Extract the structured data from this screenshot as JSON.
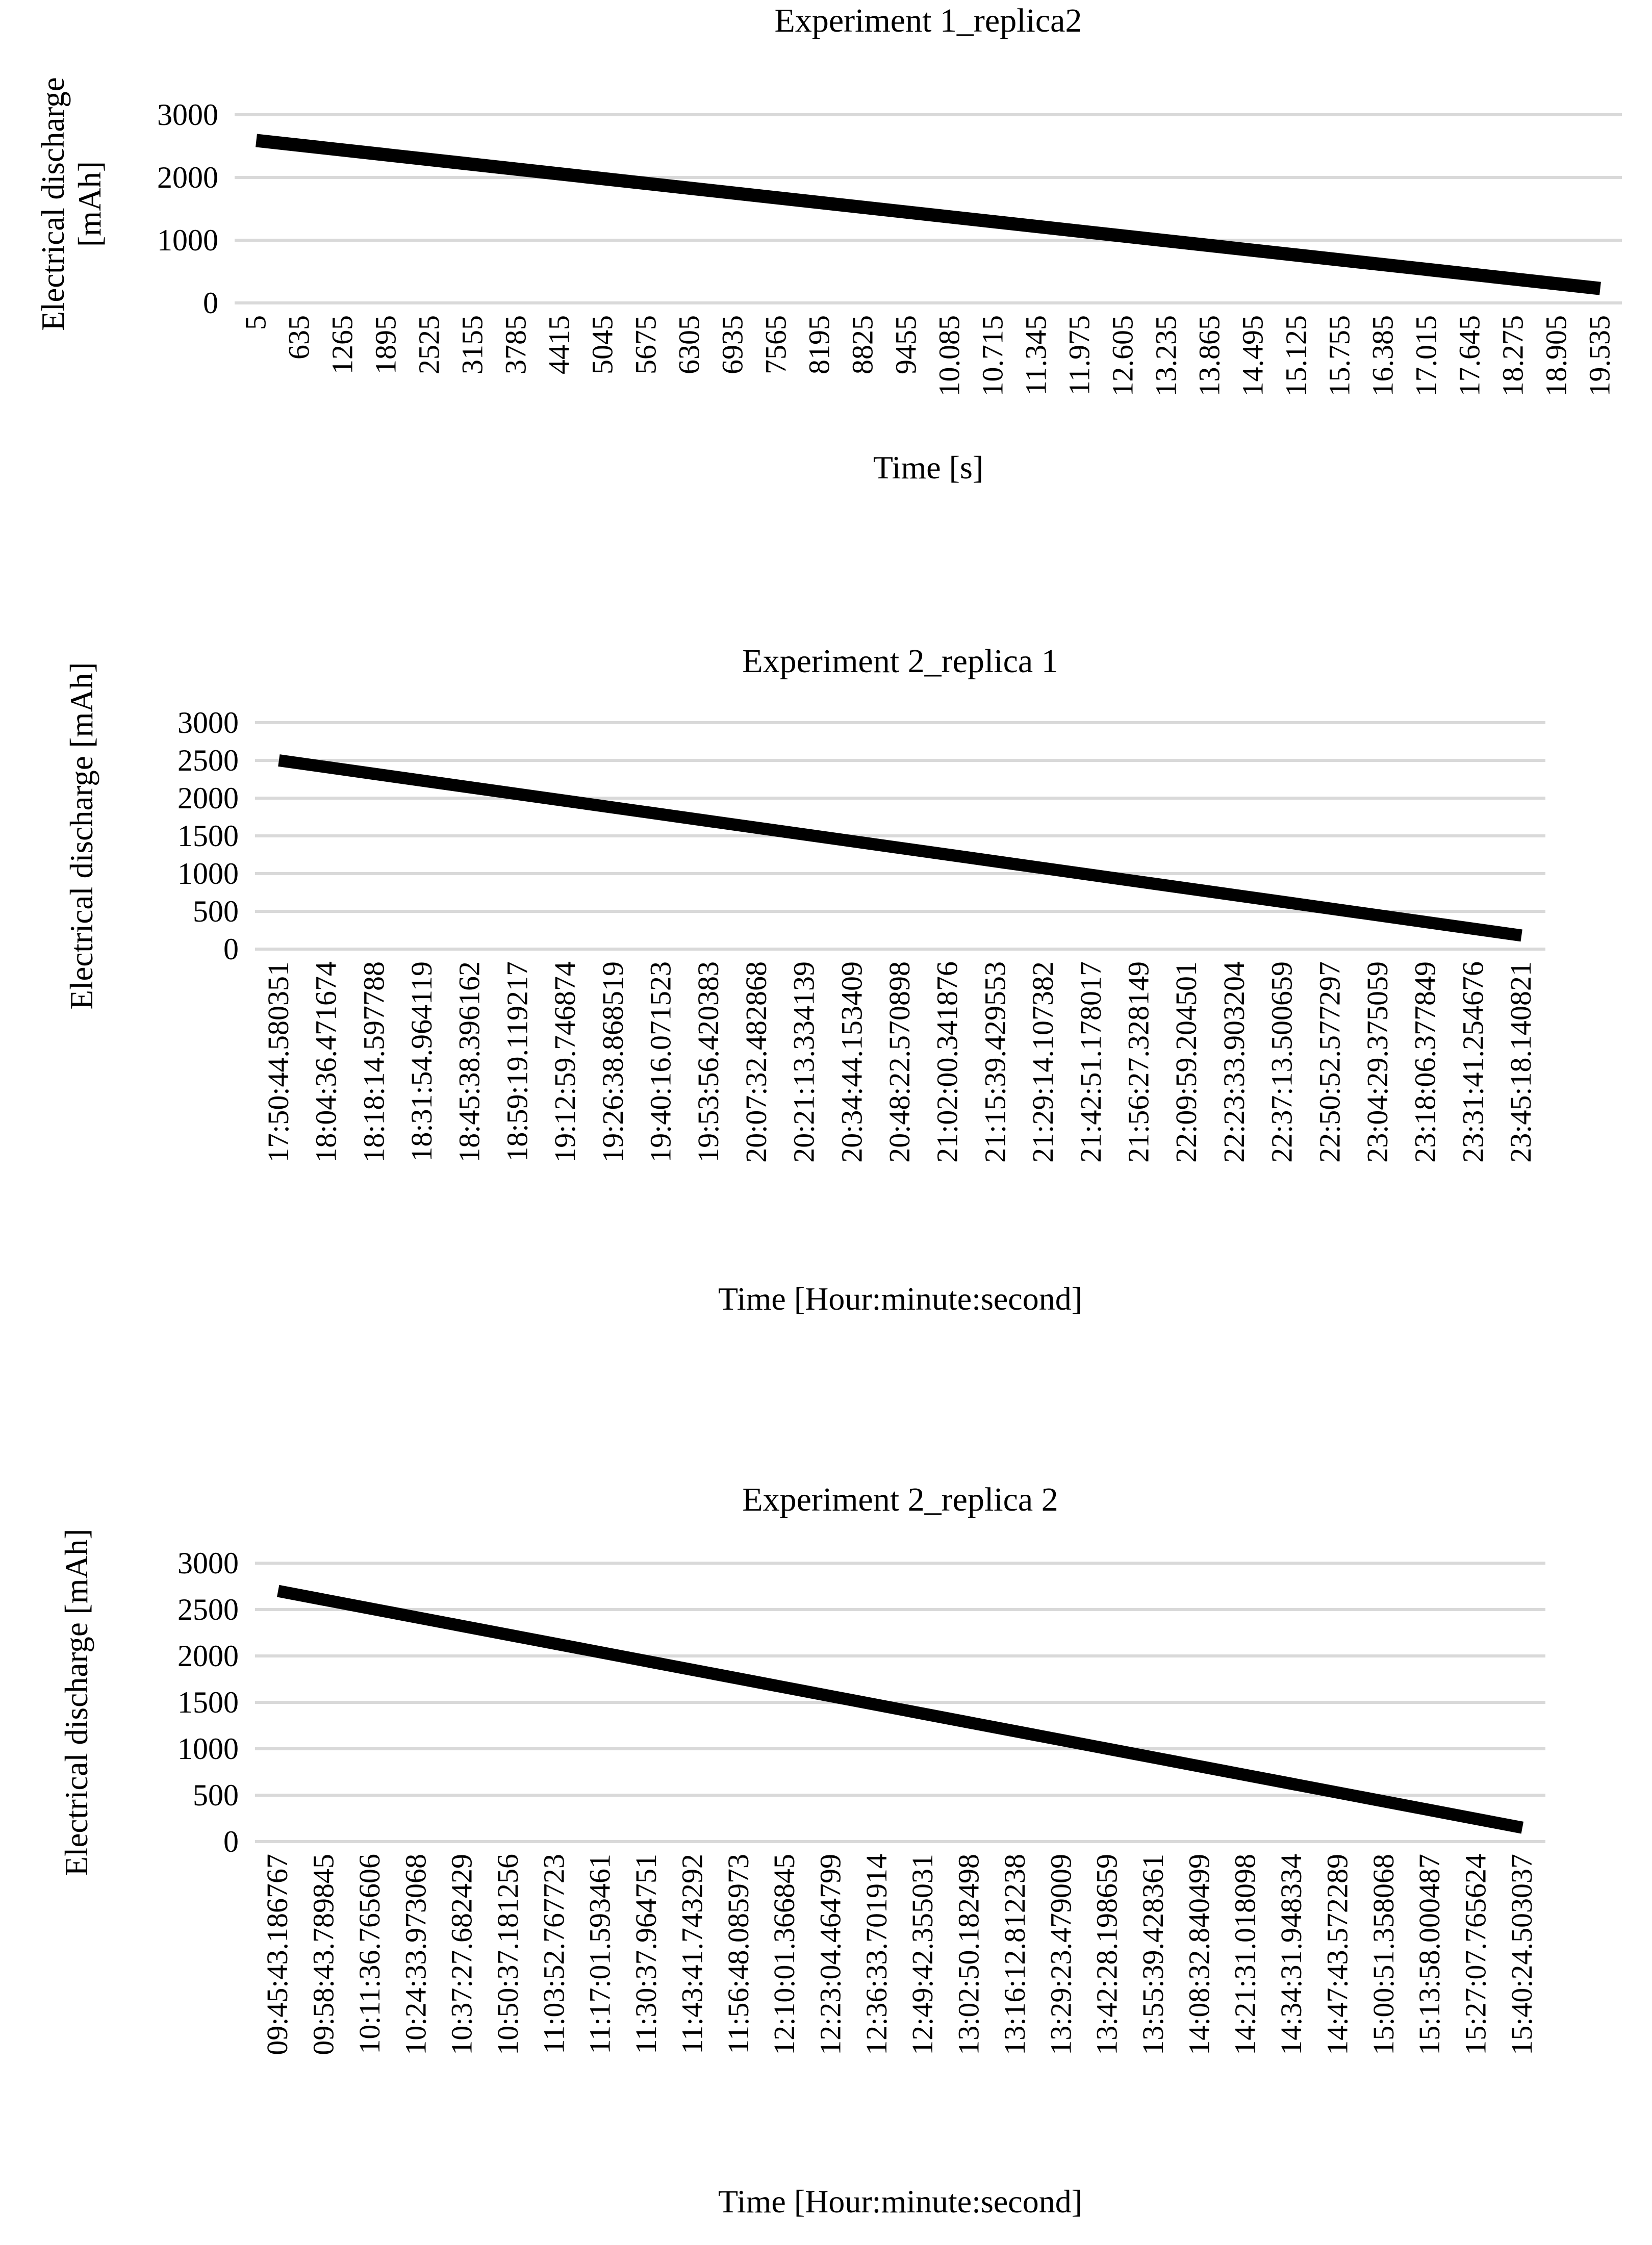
{
  "figure": {
    "background_color": "#ffffff",
    "text_color": "#000000",
    "grid_color": "#d9d9d9",
    "line_color": "#000000"
  },
  "chart_data": [
    {
      "type": "line",
      "title": "Experiment 1_replica2",
      "xlabel": "Time [s]",
      "ylabel": "Electrical discharge\n[mAh]",
      "ylim": [
        0,
        3000
      ],
      "yticks": [
        3000,
        2000,
        1000,
        0
      ],
      "grid": true,
      "legend": "none",
      "categories": [
        "5",
        "635",
        "1265",
        "1895",
        "2525",
        "3155",
        "3785",
        "4415",
        "5045",
        "5675",
        "6305",
        "6935",
        "7565",
        "8195",
        "8825",
        "9455",
        "10.085",
        "10.715",
        "11.345",
        "11.975",
        "12.605",
        "13.235",
        "13.865",
        "14.495",
        "15.125",
        "15.755",
        "16.385",
        "17.015",
        "17.645",
        "18.275",
        "18.905",
        "19.535"
      ],
      "series": [
        {
          "name": "Electrical discharge",
          "shape": "linear-decline",
          "start_value_mAh": 2590,
          "end_value_mAh": 230
        }
      ]
    },
    {
      "type": "line",
      "title": "Experiment 2_replica 1",
      "xlabel": "Time [Hour:minute:second]",
      "ylabel": "Electrical discharge [mAh]",
      "ylim": [
        0,
        3000
      ],
      "yticks": [
        3000,
        2500,
        2000,
        1500,
        1000,
        500,
        0
      ],
      "grid": true,
      "legend": "none",
      "categories": [
        "17:50:44.580351",
        "18:04:36.471674",
        "18:18:14.597788",
        "18:31:54.964119",
        "18:45:38.396162",
        "18:59:19.119217",
        "19:12:59.746874",
        "19:26:38.868519",
        "19:40:16.071523",
        "19:53:56.420383",
        "20:07:32.482868",
        "20:21:13.334139",
        "20:34:44.153409",
        "20:48:22.570898",
        "21:02:00.341876",
        "21:15:39.429553",
        "21:29:14.107382",
        "21:42:51.178017",
        "21:56:27.328149",
        "22:09:59.204501",
        "22:23:33.903204",
        "22:37:13.500659",
        "22:50:52.577297",
        "23:04:29.375059",
        "23:18:06.377849",
        "23:31:41.254676",
        "23:45:18.140821"
      ],
      "series": [
        {
          "name": "Electrical discharge",
          "shape": "linear-decline",
          "start_value_mAh": 2500,
          "end_value_mAh": 180
        }
      ]
    },
    {
      "type": "line",
      "title": "Experiment 2_replica 2",
      "xlabel": "Time [Hour:minute:second]",
      "ylabel": "Electrical discharge [mAh]",
      "ylim": [
        0,
        3000
      ],
      "yticks": [
        3000,
        2500,
        2000,
        1500,
        1000,
        500,
        0
      ],
      "grid": true,
      "legend": "none",
      "categories": [
        "09:45:43.186767",
        "09:58:43.789845",
        "10:11:36.765606",
        "10:24:33.973068",
        "10:37:27.682429",
        "10:50:37.181256",
        "11:03:52.767723",
        "11:17:01.593461",
        "11:30:37.964751",
        "11:43:41.743292",
        "11:56:48.085973",
        "12:10:01.366845",
        "12:23:04.464799",
        "12:36:33.701914",
        "12:49:42.355031",
        "13:02:50.182498",
        "13:16:12.812238",
        "13:29:23.479009",
        "13:42:28.198659",
        "13:55:39.428361",
        "14:08:32.840499",
        "14:21:31.018098",
        "14:34:31.948334",
        "14:47:43.572289",
        "15:00:51.358068",
        "15:13:58.000487",
        "15:27:07.765624",
        "15:40:24.503037"
      ],
      "series": [
        {
          "name": "Electrical discharge",
          "shape": "linear-decline",
          "start_value_mAh": 2700,
          "end_value_mAh": 150
        }
      ]
    }
  ]
}
